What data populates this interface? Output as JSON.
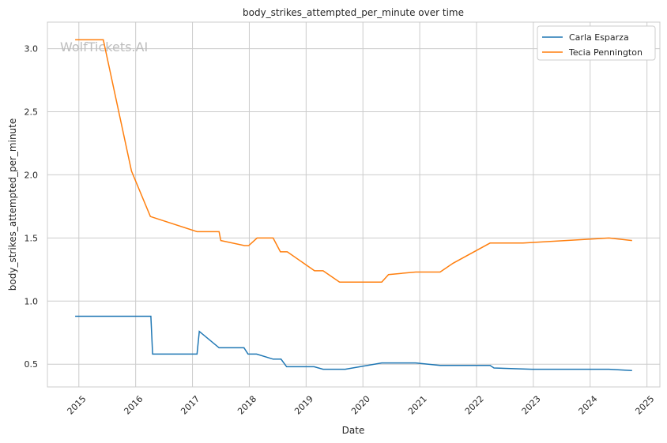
{
  "chart_data": {
    "type": "line",
    "title": "body_strikes_attempted_per_minute over time",
    "xlabel": "Date",
    "ylabel": "body_strikes_attempted_per_minute",
    "xlim": [
      "2014-06-13",
      "2025-03-25"
    ],
    "ylim": [
      0.32,
      3.21
    ],
    "xticks": [
      "2015",
      "2016",
      "2017",
      "2018",
      "2019",
      "2020",
      "2021",
      "2022",
      "2023",
      "2024",
      "2025"
    ],
    "yticks": [
      "0.5",
      "1.0",
      "1.5",
      "2.0",
      "2.5",
      "3.0"
    ],
    "grid": true,
    "legend_position": "top-right",
    "watermark": "WolfTickets.AI",
    "series": [
      {
        "name": "Carla Esparza",
        "color": "#1f77b4",
        "x": [
          "2014-12-08",
          "2016-04-08",
          "2016-04-19",
          "2017-01-30",
          "2017-02-14",
          "2017-06-21",
          "2017-11-28",
          "2017-12-24",
          "2018-02-17",
          "2018-06-03",
          "2018-07-24",
          "2018-08-29",
          "2019-02-21",
          "2019-04-20",
          "2019-09-09",
          "2020-05-01",
          "2020-12-06",
          "2021-05-12",
          "2022-03-29",
          "2022-04-23",
          "2022-12-24",
          "2024-05-01",
          "2024-09-27"
        ],
        "y": [
          0.88,
          0.88,
          0.58,
          0.58,
          0.76,
          0.63,
          0.63,
          0.58,
          0.58,
          0.54,
          0.54,
          0.48,
          0.48,
          0.46,
          0.46,
          0.51,
          0.51,
          0.49,
          0.49,
          0.47,
          0.46,
          0.46,
          0.45
        ]
      },
      {
        "name": "Tecia Pennington",
        "color": "#ff7f0e",
        "x": [
          "2014-12-08",
          "2015-06-07",
          "2015-12-05",
          "2016-04-05",
          "2017-01-30",
          "2017-06-21",
          "2017-07-02",
          "2017-12-01",
          "2017-12-28",
          "2018-02-20",
          "2018-06-03",
          "2018-07-20",
          "2018-09-02",
          "2019-02-24",
          "2019-04-20",
          "2019-08-04",
          "2020-05-01",
          "2020-06-14",
          "2020-12-06",
          "2021-05-12",
          "2021-08-04",
          "2022-03-29",
          "2022-10-27",
          "2024-05-01",
          "2024-09-27"
        ],
        "y": [
          3.07,
          3.07,
          2.03,
          1.67,
          1.55,
          1.55,
          1.48,
          1.44,
          1.44,
          1.5,
          1.5,
          1.39,
          1.39,
          1.24,
          1.24,
          1.15,
          1.15,
          1.21,
          1.23,
          1.23,
          1.3,
          1.46,
          1.46,
          1.5,
          1.48
        ]
      }
    ]
  }
}
